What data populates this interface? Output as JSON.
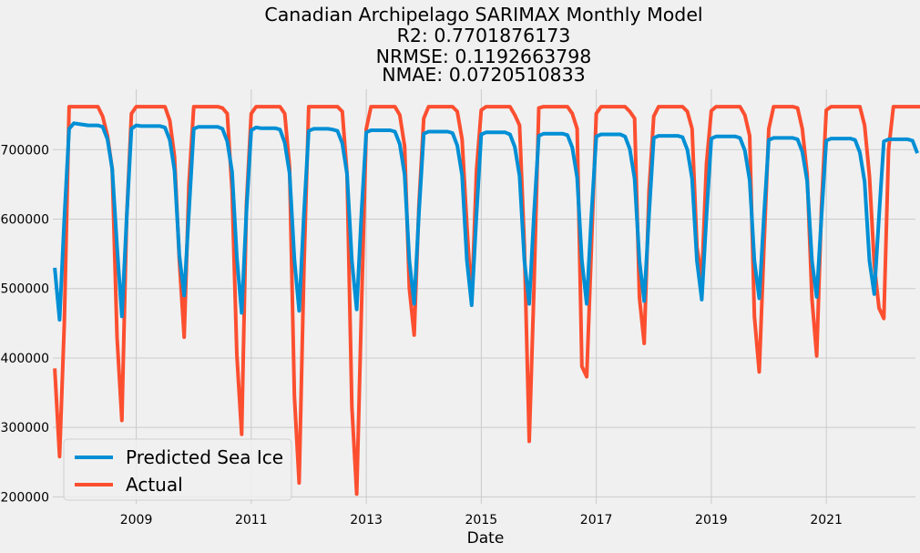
{
  "chart_data": {
    "type": "line",
    "title": [
      "Canadian Archipelago SARIMAX Monthly Model",
      "R2: 0.7701876173",
      "NRMSE: 0.1192663798",
      "NMAE: 0.0720510833"
    ],
    "xlabel": "Date",
    "ylabel": "",
    "xlim": [
      2007.55,
      2022.55
    ],
    "ylim": [
      190000,
      787000
    ],
    "x_ticks": [
      2009,
      2011,
      2013,
      2015,
      2017,
      2019,
      2021
    ],
    "y_ticks": [
      200000,
      300000,
      400000,
      500000,
      600000,
      700000
    ],
    "grid": true,
    "legend_position": "lower-left",
    "x_start": "2007-08",
    "series": [
      {
        "name": "Predicted Sea Ice",
        "color": "#008fd5",
        "values": [
          530000,
          455000,
          600000,
          730000,
          738000,
          737000,
          736000,
          735000,
          735000,
          735000,
          733000,
          715000,
          672000,
          560000,
          460000,
          600000,
          730000,
          735000,
          734000,
          734000,
          734000,
          734000,
          734000,
          732000,
          714000,
          670000,
          548000,
          490000,
          610000,
          730000,
          733000,
          733000,
          733000,
          733000,
          733000,
          730000,
          712000,
          668000,
          545000,
          465000,
          610000,
          728000,
          732000,
          731000,
          731000,
          731000,
          731000,
          729000,
          710000,
          666000,
          542000,
          468000,
          608000,
          727000,
          730000,
          730000,
          730000,
          730000,
          729000,
          727000,
          709000,
          665000,
          540000,
          470000,
          608000,
          725000,
          728000,
          728000,
          728000,
          728000,
          728000,
          726000,
          708000,
          664000,
          540000,
          478000,
          608000,
          723000,
          726000,
          726000,
          726000,
          726000,
          726000,
          724000,
          706000,
          663000,
          540000,
          476000,
          606000,
          722000,
          725000,
          725000,
          725000,
          725000,
          725000,
          722000,
          704000,
          662000,
          540000,
          478000,
          606000,
          720000,
          723000,
          723000,
          723000,
          723000,
          723000,
          721000,
          703000,
          660000,
          540000,
          478000,
          606000,
          719000,
          722000,
          722000,
          722000,
          722000,
          722000,
          719000,
          701000,
          658000,
          540000,
          482000,
          606000,
          717000,
          720000,
          720000,
          720000,
          720000,
          720000,
          718000,
          700000,
          658000,
          540000,
          484000,
          605000,
          716000,
          719000,
          719000,
          719000,
          719000,
          719000,
          717000,
          699000,
          656000,
          540000,
          486000,
          605000,
          714000,
          717000,
          717000,
          717000,
          717000,
          717000,
          715000,
          697000,
          655000,
          540000,
          488000,
          605000,
          713000,
          716000,
          716000,
          716000,
          716000,
          716000,
          714000,
          696000,
          654000,
          540000,
          492000,
          604000,
          712000,
          715000,
          715000,
          715000,
          715000,
          715000,
          713000,
          695000
        ]
      },
      {
        "name": "Actual",
        "color": "#fc4f30",
        "values": [
          385000,
          258000,
          450000,
          762000,
          762000,
          762000,
          762000,
          762000,
          762000,
          762000,
          748000,
          720000,
          672000,
          430000,
          310000,
          600000,
          752000,
          762000,
          762000,
          762000,
          762000,
          762000,
          762000,
          762000,
          742000,
          690000,
          540000,
          430000,
          650000,
          762000,
          762000,
          762000,
          762000,
          762000,
          762000,
          760000,
          752000,
          640000,
          405000,
          290000,
          620000,
          752000,
          762000,
          762000,
          762000,
          762000,
          762000,
          762000,
          752000,
          675000,
          345000,
          220000,
          530000,
          762000,
          762000,
          762000,
          762000,
          762000,
          762000,
          762000,
          755000,
          665000,
          330000,
          204000,
          470000,
          730000,
          762000,
          762000,
          762000,
          762000,
          762000,
          762000,
          750000,
          705000,
          500000,
          433000,
          620000,
          745000,
          762000,
          762000,
          762000,
          762000,
          762000,
          762000,
          755000,
          715000,
          590000,
          480000,
          670000,
          757000,
          762000,
          762000,
          762000,
          762000,
          762000,
          762000,
          750000,
          735000,
          560000,
          280000,
          500000,
          760000,
          762000,
          762000,
          762000,
          762000,
          762000,
          762000,
          752000,
          730000,
          388000,
          373000,
          560000,
          752000,
          762000,
          762000,
          762000,
          762000,
          762000,
          762000,
          755000,
          745000,
          487000,
          421000,
          640000,
          748000,
          762000,
          762000,
          762000,
          762000,
          762000,
          762000,
          755000,
          730000,
          560000,
          513000,
          680000,
          756000,
          762000,
          762000,
          762000,
          762000,
          762000,
          762000,
          750000,
          720000,
          460000,
          380000,
          560000,
          730000,
          762000,
          762000,
          762000,
          762000,
          762000,
          760000,
          730000,
          665000,
          485000,
          403000,
          620000,
          757000,
          762000,
          762000,
          762000,
          762000,
          762000,
          762000,
          762000,
          735000,
          662000,
          535000,
          472000,
          457000,
          700000,
          762000,
          762000,
          762000,
          762000,
          762000,
          762000,
          762000
        ]
      }
    ]
  }
}
